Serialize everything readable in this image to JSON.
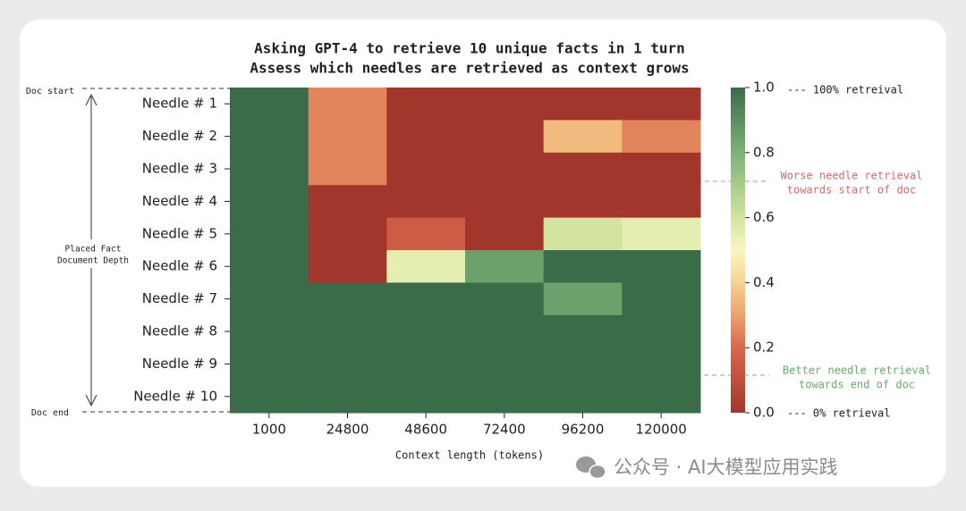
{
  "chart_data": {
    "type": "heatmap",
    "title": "Asking GPT-4 to retrieve 10 unique facts in 1 turn",
    "subtitle": "Assess which needles are retrieved as context grows",
    "xlabel": "Context length (tokens)",
    "x": [
      1000,
      24800,
      48600,
      72400,
      96200,
      120000
    ],
    "y": [
      "Needle # 1",
      "Needle # 2",
      "Needle # 3",
      "Needle # 4",
      "Needle # 5",
      "Needle # 6",
      "Needle # 7",
      "Needle # 8",
      "Needle # 9",
      "Needle # 10"
    ],
    "values": [
      [
        1.0,
        0.25,
        0.0,
        0.0,
        0.0,
        0.0
      ],
      [
        1.0,
        0.25,
        0.0,
        0.0,
        0.35,
        0.25
      ],
      [
        1.0,
        0.25,
        0.0,
        0.0,
        0.0,
        0.0
      ],
      [
        1.0,
        0.0,
        0.0,
        0.0,
        0.0,
        0.0
      ],
      [
        1.0,
        0.0,
        0.15,
        0.0,
        0.6,
        0.55
      ],
      [
        1.0,
        0.0,
        0.55,
        0.85,
        1.0,
        1.0
      ],
      [
        1.0,
        1.0,
        1.0,
        1.0,
        0.85,
        1.0
      ],
      [
        1.0,
        1.0,
        1.0,
        1.0,
        1.0,
        1.0
      ],
      [
        1.0,
        1.0,
        1.0,
        1.0,
        1.0,
        1.0
      ],
      [
        1.0,
        1.0,
        1.0,
        1.0,
        1.0,
        1.0
      ]
    ],
    "colorscale": [
      [
        0,
        "#a3362c"
      ],
      [
        0.2,
        "#d9684a"
      ],
      [
        0.3,
        "#eca26e"
      ],
      [
        0.4,
        "#f6d38f"
      ],
      [
        0.5,
        "#fbf6c2"
      ],
      [
        0.6,
        "#d2e4a0"
      ],
      [
        0.8,
        "#7cb277"
      ],
      [
        1,
        "#3b6c49"
      ]
    ],
    "clim": [
      0,
      1
    ],
    "cticks": [
      {
        "value": 0,
        "label": "0.0"
      },
      0.2,
      0.4,
      0.6,
      0.8,
      {
        "value": 1,
        "label": "1.0"
      }
    ],
    "annotations": {
      "doc_start": "Doc start",
      "doc_end": "Doc end",
      "depth_label": [
        "Placed Fact",
        "Document Depth"
      ],
      "top_note": "--- 100% retreival",
      "bottom_note": "--- 0% retrieval",
      "worse_note": [
        "Worse needle retrieval",
        "towards start of doc"
      ],
      "better_note": [
        "Better needle retrieval",
        "towards end of doc"
      ]
    },
    "watermark": "公众号 · AI大模型应用实践"
  }
}
